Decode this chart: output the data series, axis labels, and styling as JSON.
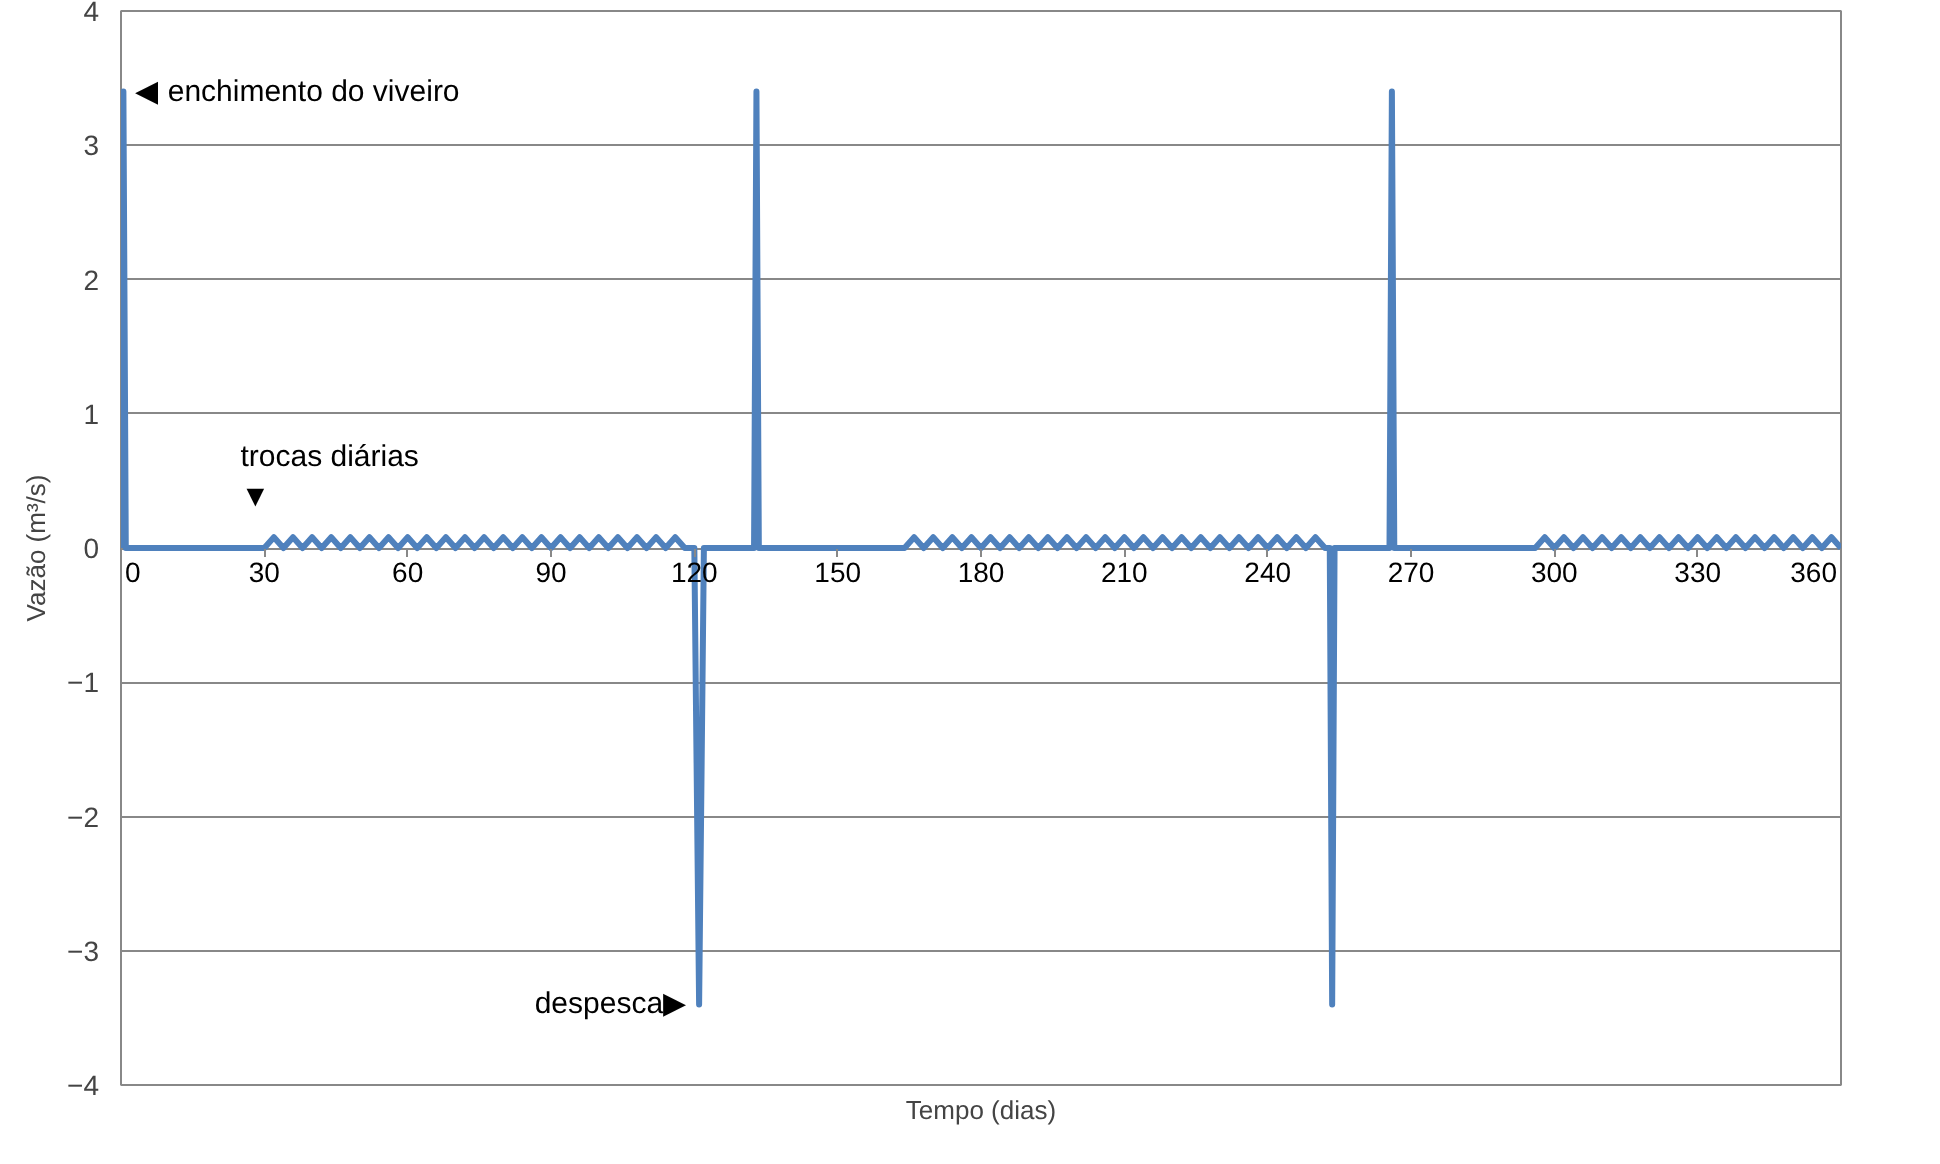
{
  "chart_data": {
    "type": "line",
    "xlabel": "Tempo (dias)",
    "ylabel": "Vazão (m³/s)",
    "xlim": [
      0,
      360
    ],
    "xticks": [
      0,
      30,
      60,
      90,
      120,
      150,
      180,
      210,
      240,
      270,
      300,
      330,
      360
    ],
    "ylim": [
      -4,
      4
    ],
    "yticks": [
      -4,
      -3,
      -2,
      -1,
      0,
      1,
      2,
      3,
      4
    ],
    "grid": "y",
    "marker": "none",
    "line_style": "solid",
    "series": [
      {
        "color": "#4f81bd",
        "x": [
          0,
          0.5,
          1,
          30,
          32,
          34,
          36,
          38,
          40,
          42,
          44,
          46,
          48,
          50,
          52,
          54,
          56,
          58,
          60,
          62,
          64,
          66,
          68,
          70,
          72,
          74,
          76,
          78,
          80,
          82,
          84,
          86,
          88,
          90,
          92,
          94,
          96,
          98,
          100,
          102,
          104,
          106,
          108,
          110,
          112,
          114,
          116,
          118,
          120,
          121,
          122,
          132.5,
          133,
          133.5,
          164,
          166,
          168,
          170,
          172,
          174,
          176,
          178,
          180,
          182,
          184,
          186,
          188,
          190,
          192,
          194,
          196,
          198,
          200,
          202,
          204,
          206,
          208,
          210,
          212,
          214,
          216,
          218,
          220,
          222,
          224,
          226,
          228,
          230,
          232,
          234,
          236,
          238,
          240,
          242,
          244,
          246,
          248,
          250,
          252,
          253,
          253.5,
          254,
          265.5,
          266,
          266.5,
          296,
          298,
          300,
          302,
          304,
          306,
          308,
          310,
          312,
          314,
          316,
          318,
          320,
          322,
          324,
          326,
          328,
          330,
          332,
          334,
          336,
          338,
          340,
          342,
          344,
          346,
          348,
          350,
          352,
          354,
          356,
          358,
          360
        ],
        "values": [
          0,
          3.4,
          0,
          0,
          0.08,
          0,
          0.08,
          0,
          0.08,
          0,
          0.08,
          0,
          0.08,
          0,
          0.08,
          0,
          0.08,
          0,
          0.08,
          0,
          0.08,
          0,
          0.08,
          0,
          0.08,
          0,
          0.08,
          0,
          0.08,
          0,
          0.08,
          0,
          0.08,
          0,
          0.08,
          0,
          0.08,
          0,
          0.08,
          0,
          0.08,
          0,
          0.08,
          0,
          0.08,
          0,
          0.08,
          0,
          0,
          -3.4,
          0,
          0,
          3.4,
          0,
          0,
          0.08,
          0,
          0.08,
          0,
          0.08,
          0,
          0.08,
          0,
          0.08,
          0,
          0.08,
          0,
          0.08,
          0,
          0.08,
          0,
          0.08,
          0,
          0.08,
          0,
          0.08,
          0,
          0.08,
          0,
          0.08,
          0,
          0.08,
          0,
          0.08,
          0,
          0.08,
          0,
          0.08,
          0,
          0.08,
          0,
          0.08,
          0,
          0.08,
          0,
          0.08,
          0,
          0.08,
          0,
          0,
          -3.4,
          0,
          0,
          3.4,
          0,
          0,
          0.08,
          0,
          0.08,
          0,
          0.08,
          0,
          0.08,
          0,
          0.08,
          0,
          0.08,
          0,
          0.08,
          0,
          0.08,
          0,
          0.08,
          0,
          0.08,
          0,
          0.08,
          0,
          0.08,
          0,
          0.08,
          0,
          0.08,
          0,
          0.08,
          0,
          0.08,
          0
        ]
      }
    ],
    "annotations": [
      {
        "text": "◀ enchimento do viveiro",
        "x": 0.5,
        "y": 3.4
      },
      "trocas diárias\n▼",
      {
        "text": "despesca▶",
        "x": 121,
        "y": -3.4
      }
    ]
  }
}
